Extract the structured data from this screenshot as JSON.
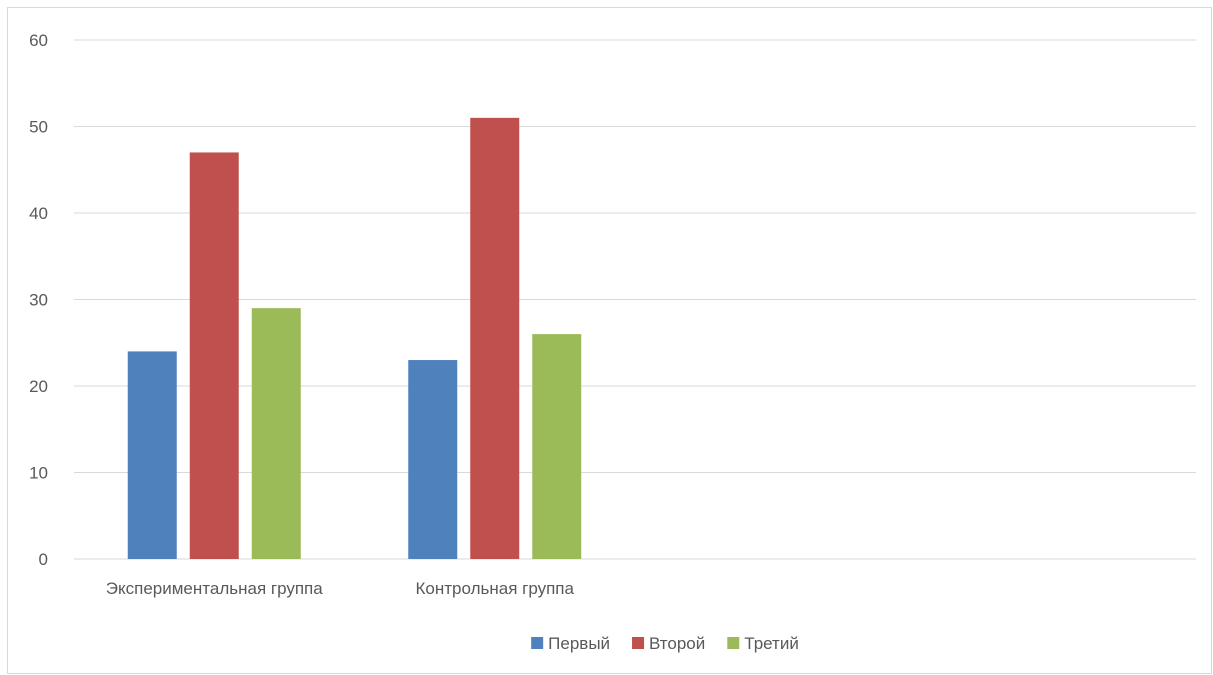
{
  "chart_data": {
    "type": "bar",
    "title": "",
    "xlabel": "",
    "ylabel": "",
    "categories": [
      "Экспериментальная группа",
      "Контрольная группа",
      "",
      ""
    ],
    "series": [
      {
        "name": "Первый",
        "values": [
          24,
          23,
          null,
          null
        ],
        "color": "#4f81bd"
      },
      {
        "name": "Второй",
        "values": [
          47,
          51,
          null,
          null
        ],
        "color": "#c0504d"
      },
      {
        "name": "Третий",
        "values": [
          29,
          26,
          null,
          null
        ],
        "color": "#9bbb59"
      }
    ],
    "ylim": [
      0,
      60
    ],
    "yticks": [
      "0",
      "10",
      "20",
      "30",
      "40",
      "50",
      "60"
    ],
    "grid": true,
    "legend_position": "bottom"
  }
}
